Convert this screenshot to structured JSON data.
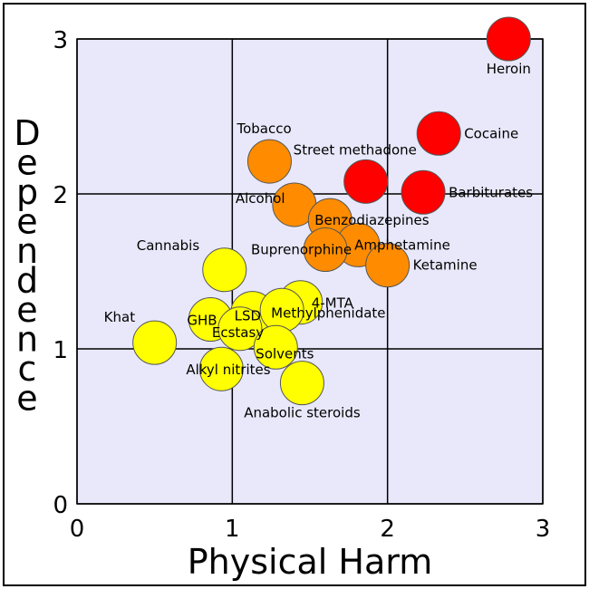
{
  "chart_data": {
    "type": "scatter",
    "title": "",
    "xlabel": "Physical Harm",
    "ylabel": "Dependence",
    "xlim": [
      0,
      3
    ],
    "ylim": [
      0,
      3
    ],
    "x_ticks": [
      "0",
      "1",
      "2",
      "3"
    ],
    "y_ticks": [
      "0",
      "1",
      "2",
      "3"
    ],
    "grid": true,
    "plot_background": "#e8e8fa",
    "colors": {
      "red": "#ff0000",
      "orange": "#ff8c00",
      "yellow": "#ffff00"
    },
    "points": [
      {
        "name": "Heroin",
        "x": 2.78,
        "y": 3.0,
        "color": "red",
        "label_pos": "below"
      },
      {
        "name": "Cocaine",
        "x": 2.33,
        "y": 2.39,
        "color": "red",
        "label_pos": "right"
      },
      {
        "name": "Barbiturates",
        "x": 2.23,
        "y": 2.01,
        "color": "red",
        "label_pos": "right"
      },
      {
        "name": "Street methadone",
        "x": 1.86,
        "y": 2.08,
        "color": "red",
        "label_pos": "left-above"
      },
      {
        "name": "Tobacco",
        "x": 1.24,
        "y": 2.21,
        "color": "orange",
        "label_pos": "above"
      },
      {
        "name": "Alcohol",
        "x": 1.4,
        "y": 1.93,
        "color": "orange",
        "label_pos": "left"
      },
      {
        "name": "Benzodiazepines",
        "x": 1.63,
        "y": 1.83,
        "color": "orange",
        "label_pos": "right"
      },
      {
        "name": "Amphetamine",
        "x": 1.81,
        "y": 1.67,
        "color": "orange",
        "label_pos": "right"
      },
      {
        "name": "Buprenorphine",
        "x": 1.6,
        "y": 1.64,
        "color": "orange",
        "label_pos": "left"
      },
      {
        "name": "Ketamine",
        "x": 2.0,
        "y": 1.54,
        "color": "orange",
        "label_pos": "right"
      },
      {
        "name": "Cannabis",
        "x": 0.95,
        "y": 1.51,
        "color": "yellow",
        "label_pos": "left"
      },
      {
        "name": "4-MTA",
        "x": 1.44,
        "y": 1.3,
        "color": "yellow",
        "label_pos": "right"
      },
      {
        "name": "LSD",
        "x": 1.13,
        "y": 1.23,
        "color": "yellow",
        "label_pos": "left"
      },
      {
        "name": "Methylphenidate",
        "x": 1.32,
        "y": 1.25,
        "color": "yellow",
        "label_pos": "right"
      },
      {
        "name": "GHB",
        "x": 0.86,
        "y": 1.19,
        "color": "yellow",
        "label_pos": "left"
      },
      {
        "name": "Ecstasy",
        "x": 1.05,
        "y": 1.13,
        "color": "yellow",
        "label_pos": "right"
      },
      {
        "name": "Khat",
        "x": 0.5,
        "y": 1.04,
        "color": "yellow",
        "label_pos": "left-above"
      },
      {
        "name": "Solvents",
        "x": 1.28,
        "y": 1.01,
        "color": "yellow",
        "label_pos": "right-below"
      },
      {
        "name": "Alkyl nitrites",
        "x": 0.93,
        "y": 0.87,
        "color": "yellow",
        "label_pos": "right"
      },
      {
        "name": "Anabolic steroids",
        "x": 1.45,
        "y": 0.78,
        "color": "yellow",
        "label_pos": "below"
      }
    ]
  }
}
